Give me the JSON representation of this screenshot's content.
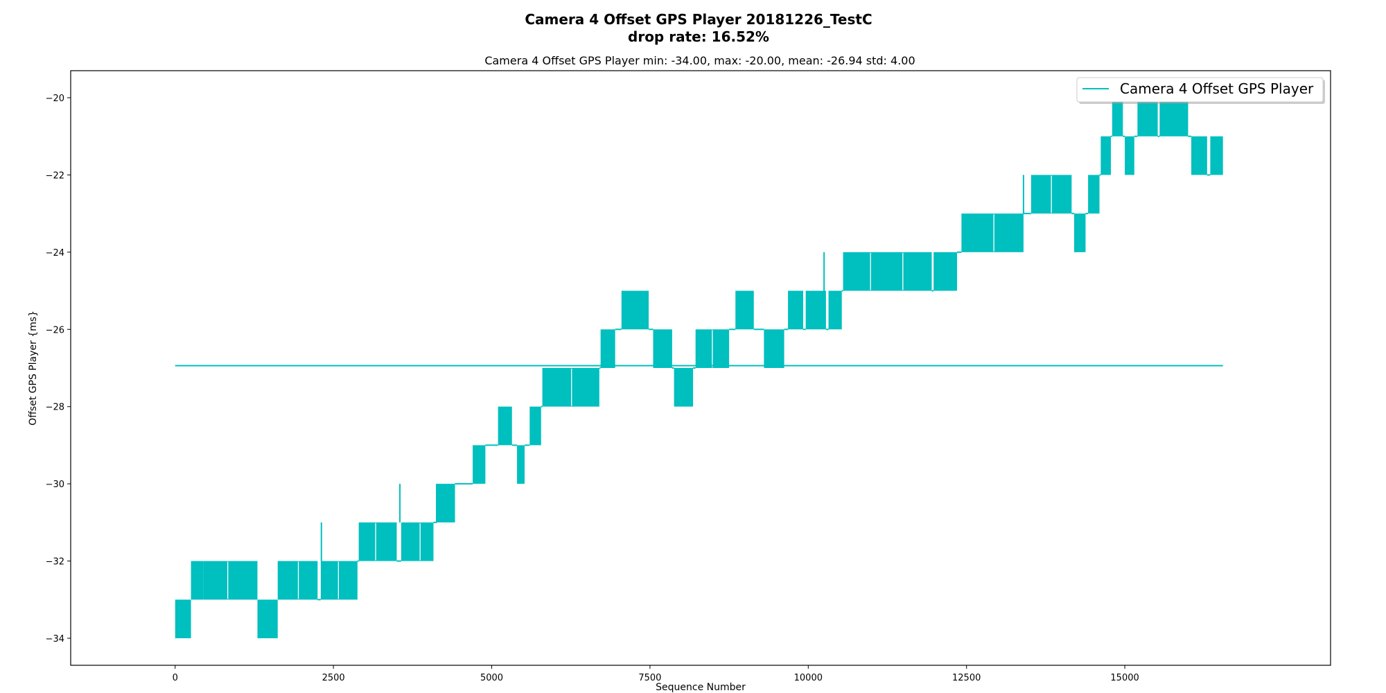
{
  "chart_data": {
    "type": "line",
    "title": "Camera 4 Offset GPS Player 20181226_TestC",
    "title_line2": "drop rate: 16.52%",
    "subtitle": "Camera 4 Offset GPS Player min: -34.00, max: -20.00, mean: -26.94 std: 4.00",
    "xlabel": "Sequence Number",
    "ylabel": "Offset GPS Player {ms}",
    "xlim": [
      -1650,
      18250
    ],
    "ylim": [
      -34.7,
      -19.3
    ],
    "xticks": [
      0,
      2500,
      5000,
      7500,
      10000,
      12500,
      15000
    ],
    "xtick_labels": [
      "0",
      "2500",
      "5000",
      "7500",
      "10000",
      "12500",
      "15000"
    ],
    "yticks": [
      -20,
      -22,
      -24,
      -26,
      -28,
      -30,
      -32,
      -34
    ],
    "ytick_labels": [
      "−20",
      "−22",
      "−24",
      "−26",
      "−28",
      "−30",
      "−32",
      "−34"
    ],
    "grid": false,
    "legend_position": "top-right",
    "color": "#00bfbf",
    "series": [
      {
        "name": "Camera 4 Offset GPS Player",
        "oscillation_segments": [
          {
            "x_start": 0,
            "x_end": 250,
            "low": -34,
            "high": -33
          },
          {
            "x_start": 250,
            "x_end": 450,
            "low": -33,
            "high": -32
          },
          {
            "x_start": 450,
            "x_end": 1300,
            "low": -33,
            "high": -32
          },
          {
            "x_start": 1300,
            "x_end": 1620,
            "low": -34,
            "high": -33
          },
          {
            "x_start": 1620,
            "x_end": 2250,
            "low": -33,
            "high": -32
          },
          {
            "x_start": 2300,
            "x_end": 2880,
            "low": -33,
            "high": -32
          },
          {
            "x_start": 2900,
            "x_end": 3500,
            "low": -32,
            "high": -31
          },
          {
            "x_start": 3570,
            "x_end": 4080,
            "low": -32,
            "high": -31
          },
          {
            "x_start": 4130,
            "x_end": 4420,
            "low": -31,
            "high": -30
          },
          {
            "x_start": 4700,
            "x_end": 4900,
            "low": -30,
            "high": -29
          },
          {
            "x_start": 5100,
            "x_end": 5320,
            "low": -29,
            "high": -28
          },
          {
            "x_start": 5400,
            "x_end": 5520,
            "low": -30,
            "high": -29
          },
          {
            "x_start": 5600,
            "x_end": 5780,
            "low": -29,
            "high": -28
          },
          {
            "x_start": 5800,
            "x_end": 6700,
            "low": -28,
            "high": -27
          },
          {
            "x_start": 6720,
            "x_end": 6950,
            "low": -27,
            "high": -26
          },
          {
            "x_start": 7050,
            "x_end": 7480,
            "low": -26,
            "high": -25
          },
          {
            "x_start": 7550,
            "x_end": 7850,
            "low": -27,
            "high": -26
          },
          {
            "x_start": 7880,
            "x_end": 8180,
            "low": -28,
            "high": -27
          },
          {
            "x_start": 8220,
            "x_end": 8750,
            "low": -27,
            "high": -26
          },
          {
            "x_start": 8850,
            "x_end": 9140,
            "low": -26,
            "high": -25
          },
          {
            "x_start": 9300,
            "x_end": 9620,
            "low": -27,
            "high": -26
          },
          {
            "x_start": 9680,
            "x_end": 9920,
            "low": -26,
            "high": -25
          },
          {
            "x_start": 9960,
            "x_end": 10280,
            "low": -26,
            "high": -25
          },
          {
            "x_start": 10320,
            "x_end": 10530,
            "low": -26,
            "high": -25
          },
          {
            "x_start": 10550,
            "x_end": 11950,
            "low": -25,
            "high": -24
          },
          {
            "x_start": 11980,
            "x_end": 12350,
            "low": -25,
            "high": -24
          },
          {
            "x_start": 12420,
            "x_end": 13400,
            "low": -24,
            "high": -23
          },
          {
            "x_start": 13520,
            "x_end": 14160,
            "low": -23,
            "high": -22
          },
          {
            "x_start": 14200,
            "x_end": 14380,
            "low": -24,
            "high": -23
          },
          {
            "x_start": 14420,
            "x_end": 14600,
            "low": -23,
            "high": -22
          },
          {
            "x_start": 14620,
            "x_end": 14780,
            "low": -22,
            "high": -21
          },
          {
            "x_start": 14800,
            "x_end": 14970,
            "low": -21,
            "high": -20
          },
          {
            "x_start": 15000,
            "x_end": 15150,
            "low": -22,
            "high": -21
          },
          {
            "x_start": 15200,
            "x_end": 15520,
            "low": -21,
            "high": -20
          },
          {
            "x_start": 15550,
            "x_end": 16000,
            "low": -21,
            "high": -20
          },
          {
            "x_start": 16050,
            "x_end": 16300,
            "low": -22,
            "high": -21
          },
          {
            "x_start": 16350,
            "x_end": 16550,
            "low": -22,
            "high": -21
          }
        ],
        "spikes": [
          {
            "x": 2310,
            "low": -32,
            "high": -31
          },
          {
            "x": 3550,
            "low": -31,
            "high": -30
          },
          {
            "x": 4130,
            "low": -31,
            "high": -30
          },
          {
            "x": 10250,
            "low": -25,
            "high": -24
          },
          {
            "x": 13400,
            "low": -23,
            "high": -22
          },
          {
            "x": 14230,
            "low": -24,
            "high": -23
          }
        ]
      },
      {
        "name": "",
        "mean_line": {
          "x_start": 0,
          "x_end": 16550,
          "y": -26.94
        }
      }
    ]
  }
}
